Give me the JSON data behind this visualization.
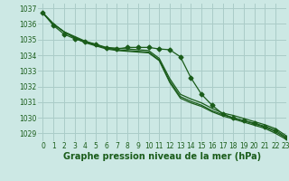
{
  "title": "Graphe pression niveau de la mer (hPa)",
  "bg_color": "#cce8e4",
  "grid_color": "#aaccc8",
  "line_color": "#1a5c1a",
  "xlim": [
    -0.5,
    23
  ],
  "ylim": [
    1028.5,
    1037.3
  ],
  "yticks": [
    1029,
    1030,
    1031,
    1032,
    1033,
    1034,
    1035,
    1036,
    1037
  ],
  "xticks": [
    0,
    1,
    2,
    3,
    4,
    5,
    6,
    7,
    8,
    9,
    10,
    11,
    12,
    13,
    14,
    15,
    16,
    17,
    18,
    19,
    20,
    21,
    22,
    23
  ],
  "series": [
    {
      "y": [
        1036.7,
        1036.0,
        1035.5,
        1035.2,
        1034.9,
        1034.7,
        1034.5,
        1034.45,
        1034.4,
        1034.35,
        1034.3,
        1033.8,
        1032.5,
        1031.5,
        1031.2,
        1030.95,
        1030.6,
        1030.3,
        1030.15,
        1029.95,
        1029.75,
        1029.55,
        1029.3,
        1028.85
      ],
      "marker": false
    },
    {
      "y": [
        1036.7,
        1036.0,
        1035.5,
        1035.15,
        1034.85,
        1034.65,
        1034.45,
        1034.35,
        1034.3,
        1034.25,
        1034.2,
        1033.7,
        1032.35,
        1031.35,
        1031.05,
        1030.8,
        1030.45,
        1030.2,
        1030.0,
        1029.8,
        1029.6,
        1029.4,
        1029.1,
        1028.7
      ],
      "marker": false
    },
    {
      "y": [
        1036.7,
        1036.0,
        1035.5,
        1035.1,
        1034.8,
        1034.6,
        1034.4,
        1034.3,
        1034.25,
        1034.2,
        1034.15,
        1033.65,
        1032.25,
        1031.25,
        1030.95,
        1030.72,
        1030.38,
        1030.12,
        1029.92,
        1029.72,
        1029.52,
        1029.32,
        1029.0,
        1028.62
      ],
      "marker": false
    },
    {
      "y": [
        1036.7,
        1035.9,
        1035.35,
        1035.05,
        1034.85,
        1034.7,
        1034.45,
        1034.4,
        1034.5,
        1034.5,
        1034.5,
        1034.4,
        1034.35,
        1033.9,
        1032.55,
        1031.5,
        1030.8,
        1030.25,
        1029.98,
        1029.82,
        1029.65,
        1029.45,
        1029.2,
        1028.75
      ],
      "marker": true
    }
  ],
  "marker_style": "D",
  "marker_size": 2.5,
  "line_width": 0.9,
  "tick_fontsize": 5.5,
  "label_fontsize": 7.0,
  "label_fontweight": "bold",
  "label_color": "#1a5c1a"
}
